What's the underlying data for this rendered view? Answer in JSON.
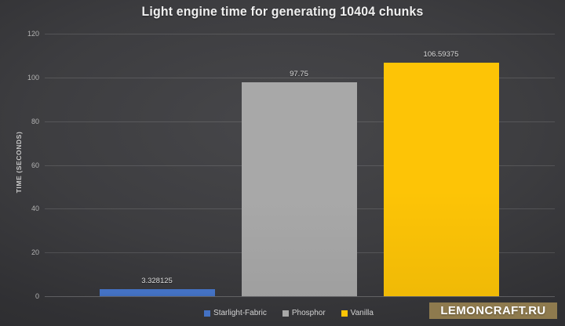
{
  "chart_data": {
    "type": "bar",
    "title": "Light engine time for generating 10404 chunks",
    "xlabel": "",
    "ylabel": "TIME (SECONDS)",
    "categories": [
      "Starlight-Fabric",
      "Phosphor",
      "Vanilla"
    ],
    "values": [
      3.328125,
      97.75,
      106.59375
    ],
    "value_labels": [
      "3.328125",
      "97.75",
      "106.59375"
    ],
    "bar_colors": [
      "#4472c4",
      "#a8a8a8",
      "#fdc406"
    ],
    "ylim": [
      0,
      120
    ],
    "yticks": [
      0,
      20,
      40,
      60,
      80,
      100,
      120
    ],
    "grid": true,
    "legend_position": "bottom",
    "legend_entries": [
      {
        "label": "Starlight-Fabric",
        "color": "#4472c4"
      },
      {
        "label": "Phosphor",
        "color": "#a8a8a8"
      },
      {
        "label": "Vanilla",
        "color": "#fdc406"
      }
    ]
  },
  "watermark": {
    "text": "LEMONCRAFT.RU",
    "background": "#8e7a4e"
  }
}
